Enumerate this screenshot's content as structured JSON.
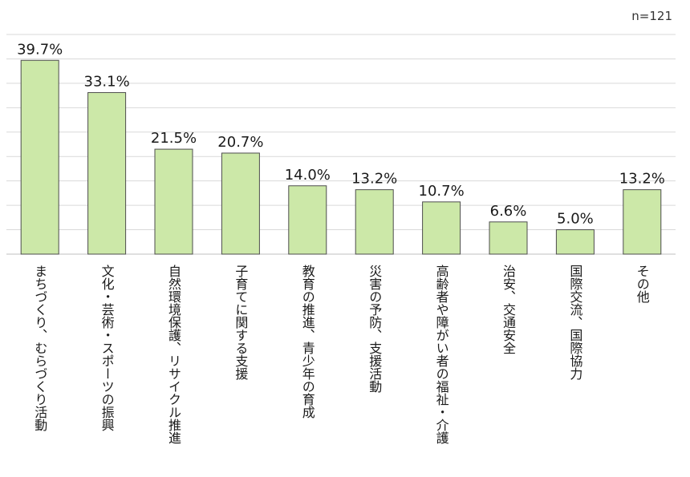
{
  "sample_size": "n=121",
  "colors": {
    "bar_fill": "#cce8a8",
    "bar_stroke": "#4d4d4d"
  },
  "chart_data": {
    "type": "bar",
    "title": "",
    "xlabel": "",
    "ylabel": "",
    "categories": [
      "まちづくり、むらづくり活動",
      "文化・芸術・スポーツの振興",
      "自然環境保護、リサイクル推進",
      "子育てに関する支援",
      "教育の推進、青少年の育成",
      "災害の予防、支援活動",
      "高齢者や障がい者の福祉・介護",
      "治安、交通安全",
      "国際交流、国際協力",
      "その他"
    ],
    "values": [
      39.7,
      33.1,
      21.5,
      20.7,
      14.0,
      13.2,
      10.7,
      6.6,
      5.0,
      13.2
    ],
    "value_labels": [
      "39.7%",
      "33.1%",
      "21.5%",
      "20.7%",
      "14.0%",
      "13.2%",
      "10.7%",
      "6.6%",
      "5.0%",
      "13.2%"
    ],
    "ylim": [
      0,
      45
    ],
    "grid": true,
    "legend": "none"
  }
}
